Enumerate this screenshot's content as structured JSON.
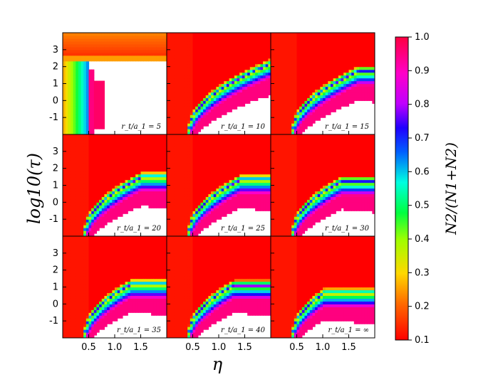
{
  "chart_data": {
    "type": "heatmap",
    "xlabel": "η",
    "ylabel": "log10(τ)",
    "colorbar": {
      "label": "N2/(N1+N2)",
      "range": [
        0.1,
        1.0
      ],
      "ticks": [
        "0.1",
        "0.2",
        "0.3",
        "0.4",
        "0.5",
        "0.6",
        "0.7",
        "0.8",
        "0.9",
        "1.0"
      ]
    },
    "x_range": [
      0.0,
      2.0
    ],
    "x_ticks": [
      "0.5",
      "1.0",
      "1.5"
    ],
    "y_range": [
      -2.0,
      4.0
    ],
    "y_ticks": [
      "-1",
      "0",
      "1",
      "2",
      "3"
    ],
    "grid": "3x3",
    "panels": [
      {
        "label": "r_t/a_1 = 5",
        "r_text": "5"
      },
      {
        "label": "r_t/a_1 = 10",
        "r_text": "10"
      },
      {
        "label": "r_t/a_1 = 15",
        "r_text": "15"
      },
      {
        "label": "r_t/a_1 = 20",
        "r_text": "20"
      },
      {
        "label": "r_t/a_1 = 25",
        "r_text": "25"
      },
      {
        "label": "r_t/a_1 = 30",
        "r_text": "30"
      },
      {
        "label": "r_t/a_1 = 35",
        "r_text": "35"
      },
      {
        "label": "r_t/a_1 = 40",
        "r_text": "40"
      },
      {
        "label": "r_t/a_1 = ∞",
        "r_text": "∞"
      }
    ]
  }
}
